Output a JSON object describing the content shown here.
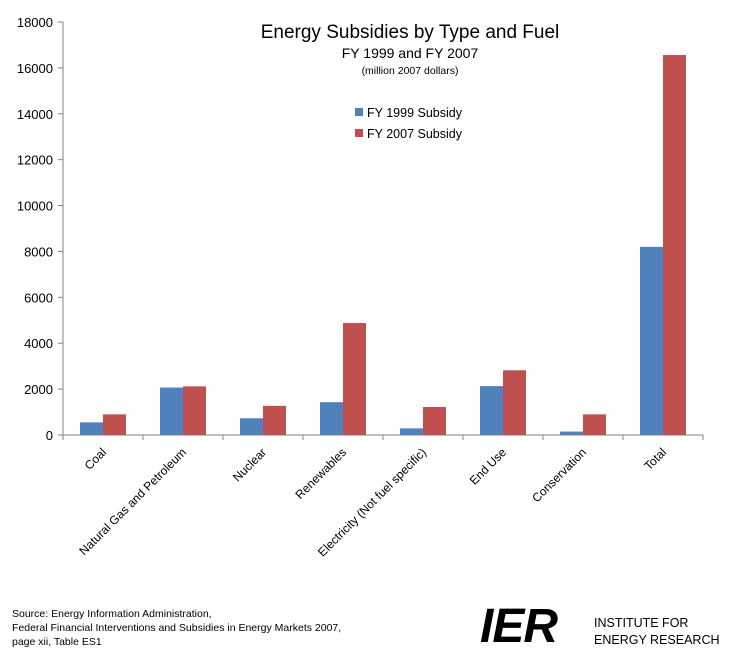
{
  "chart_data": {
    "type": "bar",
    "title": "Energy Subsidies by Type and Fuel",
    "subtitle": "FY 1999 and FY 2007",
    "units_note": "(million 2007 dollars)",
    "xlabel": "",
    "ylabel": "",
    "ylim": [
      0,
      18000
    ],
    "yticks": [
      0,
      2000,
      4000,
      6000,
      8000,
      10000,
      12000,
      14000,
      16000,
      18000
    ],
    "grid": false,
    "legend_position": "top-center",
    "categories": [
      "Coal",
      "Natural Gas and Petroleum",
      "Nuclear",
      "Renewables",
      "Electricity (Not fuel specific)",
      "End Use",
      "Conservation",
      "Total"
    ],
    "series": [
      {
        "name": "FY 1999 Subsidy",
        "color": "#4f81bd",
        "values": [
          550,
          2070,
          730,
          1430,
          290,
          2130,
          150,
          8200
        ]
      },
      {
        "name": "FY 2007 Subsidy",
        "color": "#c0504d",
        "values": [
          900,
          2120,
          1270,
          4880,
          1220,
          2820,
          900,
          16560
        ]
      }
    ]
  },
  "source": {
    "lines": [
      "Source: Energy Information Administration,",
      "Federal Financial Interventions and Subsidies in Energy Markets 2007,",
      "page xii, Table ES1"
    ]
  },
  "logo": {
    "mark": "IER",
    "line1": "INSTITUTE FOR",
    "line2": "ENERGY RESEARCH",
    "color": "#000000"
  }
}
